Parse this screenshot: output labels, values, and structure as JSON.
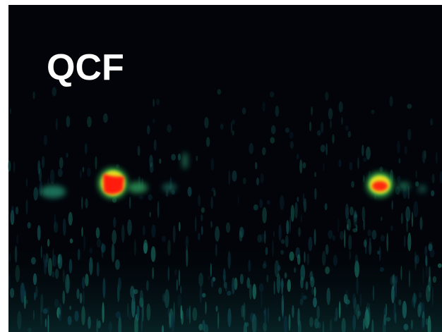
{
  "label": "QCF"
}
